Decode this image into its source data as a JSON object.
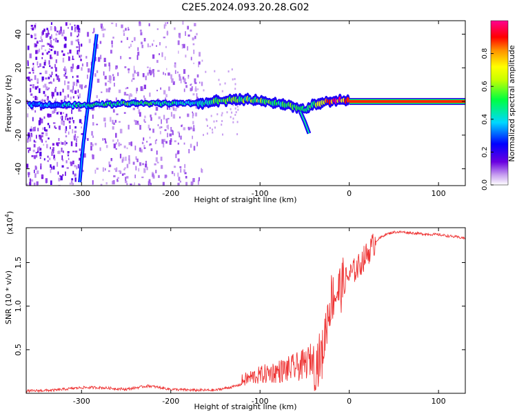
{
  "figure": {
    "title": "C2E5.2024.093.20.28.G02"
  },
  "chart_data": [
    {
      "type": "heatmap",
      "xlabel": "Height of straight line (km)",
      "ylabel": "Frequency (Hz)",
      "xlim": [
        -362,
        130
      ],
      "ylim": [
        -50,
        48
      ],
      "xticks": [
        -300,
        -200,
        -100,
        0,
        100
      ],
      "xtick_labels": [
        "-300",
        "-200",
        "-100",
        "0",
        "100"
      ],
      "yticks": [
        -40,
        -20,
        0,
        20,
        40
      ],
      "ytick_labels": [
        "-40",
        "-20",
        "0",
        "20",
        "40"
      ],
      "grid": false,
      "colorbar": {
        "label": "Normalized spectral amplitude",
        "range": [
          0,
          1
        ],
        "ticks": [
          0,
          0.2,
          0.4,
          0.6,
          0.8
        ],
        "tick_labels": [
          "0.0",
          "0.2",
          "0.4",
          "0.6",
          "0.8"
        ],
        "colormap": "rainbow"
      },
      "features": {
        "noise_band_x": [
          -362,
          -165
        ],
        "main_trace": [
          {
            "x": -360,
            "y": -2,
            "amp": 0.35
          },
          {
            "x": -330,
            "y": -2,
            "amp": 0.35
          },
          {
            "x": -295,
            "y": -2,
            "amp": 0.45
          },
          {
            "x": -280,
            "y": -2,
            "amp": 0.45
          },
          {
            "x": -250,
            "y": -1,
            "amp": 0.5
          },
          {
            "x": -200,
            "y": -1,
            "amp": 0.45
          },
          {
            "x": -165,
            "y": -1,
            "amp": 0.4
          },
          {
            "x": -150,
            "y": 0,
            "amp": 0.5
          },
          {
            "x": -130,
            "y": 1,
            "amp": 0.55
          },
          {
            "x": -110,
            "y": 1,
            "amp": 0.55
          },
          {
            "x": -80,
            "y": -1,
            "amp": 0.5
          },
          {
            "x": -60,
            "y": -3,
            "amp": 0.5
          },
          {
            "x": -50,
            "y": -5,
            "amp": 0.45
          },
          {
            "x": -40,
            "y": -2,
            "amp": 0.5
          },
          {
            "x": -25,
            "y": 0,
            "amp": 0.8
          },
          {
            "x": -5,
            "y": 1,
            "amp": 0.9
          },
          {
            "x": 0,
            "y": 0,
            "amp": 1.0
          },
          {
            "x": 130,
            "y": 0,
            "amp": 1.0
          }
        ],
        "diagonal_streak": [
          [
            -302,
            -48
          ],
          [
            -298,
            -25
          ],
          [
            -288,
            18
          ],
          [
            -283,
            40
          ]
        ],
        "branch": [
          [
            -55,
            -6
          ],
          [
            -50,
            -12
          ],
          [
            -45,
            -19
          ]
        ]
      }
    },
    {
      "type": "line",
      "xlabel": "Height of straight line (km)",
      "ylabel": "SNR (10 * v/v)",
      "y_multiplier": "(x10",
      "y_multiplier_exp": "4",
      "y_multiplier_close": ")",
      "xlim": [
        -362,
        130
      ],
      "ylim": [
        0,
        1.9
      ],
      "xticks": [
        -300,
        -200,
        -100,
        0,
        100
      ],
      "xtick_labels": [
        "-300",
        "-200",
        "-100",
        "0",
        "100"
      ],
      "yticks": [
        0.5,
        1.0,
        1.5
      ],
      "ytick_labels": [
        "0.5",
        "1.0",
        "1.5"
      ],
      "grid": false,
      "color": "#ee3333",
      "series": [
        {
          "x": [
            -362,
            -330,
            -300,
            -280,
            -250,
            -225,
            -200,
            -175,
            -150,
            -130,
            -110,
            -90,
            -70,
            -50,
            -40,
            -30,
            -25,
            -20,
            -15,
            -10,
            -5,
            0,
            10,
            20,
            30,
            40,
            50,
            60,
            80,
            100,
            130
          ],
          "y": [
            0.02,
            0.03,
            0.06,
            0.06,
            0.04,
            0.08,
            0.04,
            0.03,
            0.03,
            0.07,
            0.13,
            0.16,
            0.18,
            0.22,
            0.3,
            0.45,
            0.85,
            1.1,
            1.15,
            1.2,
            1.3,
            1.35,
            1.45,
            1.6,
            1.75,
            1.82,
            1.85,
            1.85,
            1.83,
            1.82,
            1.78
          ]
        }
      ]
    }
  ]
}
